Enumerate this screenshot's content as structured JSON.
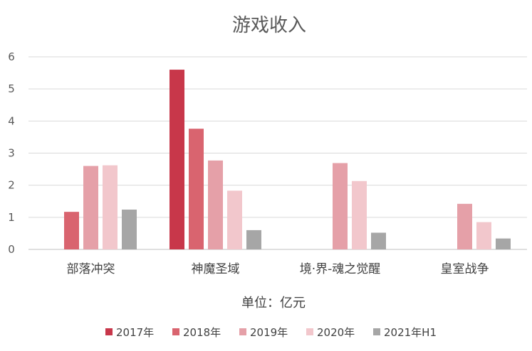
{
  "chart_data": {
    "type": "bar",
    "title": "游戏收入",
    "xlabel": "单位：亿元",
    "ylabel": "",
    "ylim": [
      0,
      6
    ],
    "yticks": [
      "0",
      "1",
      "2",
      "3",
      "4",
      "5",
      "6"
    ],
    "grid": true,
    "legend_position": "bottom",
    "categories": [
      "部落冲突",
      "神魔圣域",
      "境·界-魂之觉醒",
      "皇室战争"
    ],
    "series": [
      {
        "name": "2017年",
        "color": "#c8374a",
        "values": [
          null,
          5.6,
          null,
          null
        ]
      },
      {
        "name": "2018年",
        "color": "#d9646f",
        "values": [
          1.17,
          3.76,
          null,
          null
        ]
      },
      {
        "name": "2019年",
        "color": "#e5a0a8",
        "values": [
          2.6,
          2.77,
          2.69,
          1.42
        ]
      },
      {
        "name": "2020年",
        "color": "#f2c7cc",
        "values": [
          2.62,
          1.83,
          2.13,
          0.85
        ]
      },
      {
        "name": "2021年H1",
        "color": "#a6a6a6",
        "values": [
          1.24,
          0.6,
          0.52,
          0.34
        ]
      }
    ]
  }
}
